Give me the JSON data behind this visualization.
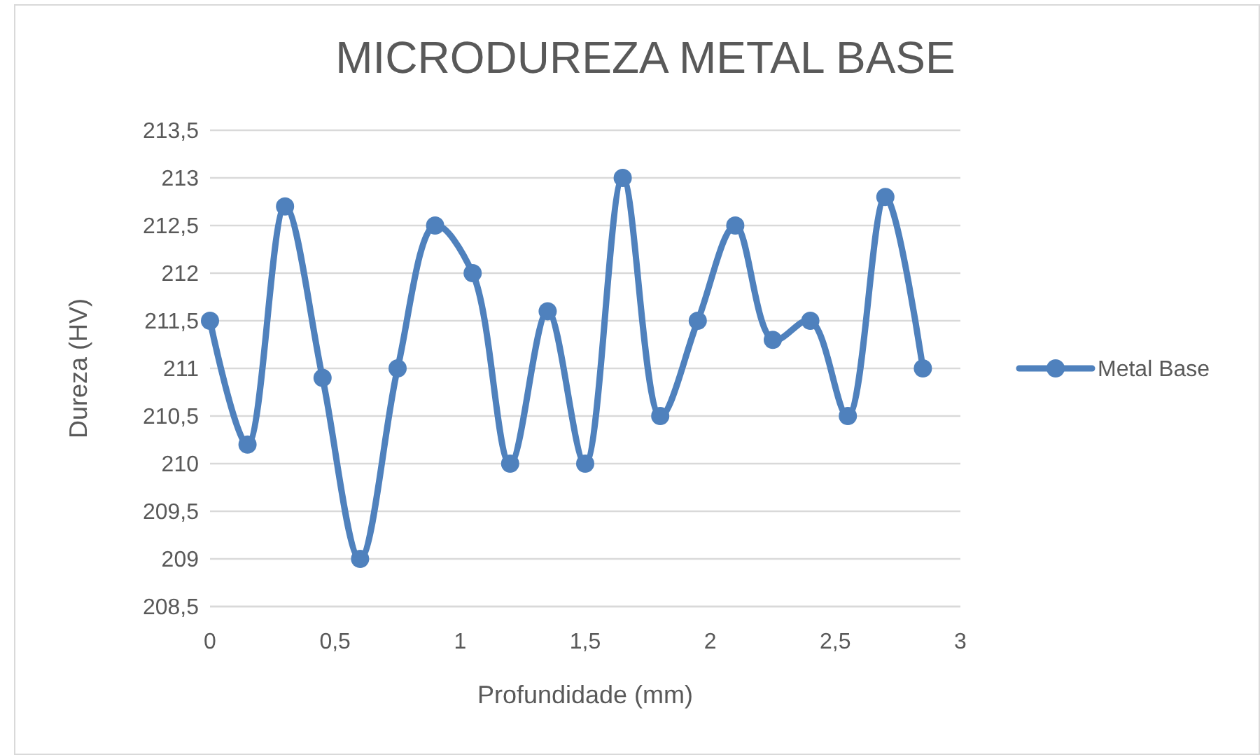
{
  "chart_data": {
    "type": "line",
    "title": "MICRODUREZA METAL BASE",
    "xlabel": "Profundidade (mm)",
    "ylabel": "Dureza (HV)",
    "x": [
      0,
      0.15,
      0.3,
      0.45,
      0.6,
      0.75,
      0.9,
      1.05,
      1.2,
      1.35,
      1.5,
      1.65,
      1.8,
      1.95,
      2.1,
      2.25,
      2.4,
      2.55,
      2.7,
      2.85
    ],
    "series": [
      {
        "name": "Metal Base",
        "color": "#4f81bd",
        "values": [
          211.5,
          210.2,
          212.7,
          210.9,
          209,
          211,
          212.5,
          212,
          210,
          211.6,
          210,
          213,
          210.5,
          211.5,
          212.5,
          211.3,
          211.5,
          210.5,
          212.8,
          211
        ]
      }
    ],
    "xlim": [
      0,
      3
    ],
    "xticks": [
      0,
      {
        "value": 0.5,
        "label": "0,5"
      },
      1,
      {
        "value": 1.5,
        "label": "1,5"
      },
      2,
      {
        "value": 2.5,
        "label": "2,5"
      },
      3
    ],
    "ylim": [
      208.5,
      213.5
    ],
    "yticks": [
      {
        "value": 208.5,
        "label": "208,5"
      },
      209,
      {
        "value": 209.5,
        "label": "209,5"
      },
      210,
      {
        "value": 210.5,
        "label": "210,5"
      },
      211,
      {
        "value": 211.5,
        "label": "211,5"
      },
      212,
      {
        "value": 212.5,
        "label": "212,5"
      },
      213,
      {
        "value": 213.5,
        "label": "213,5"
      }
    ],
    "grid": "y",
    "legend": "right",
    "marker": "circle",
    "line_style": "solid"
  }
}
